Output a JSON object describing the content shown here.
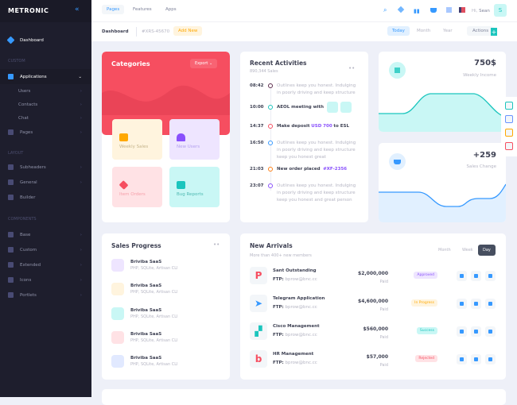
{
  "brand": "METRONIC",
  "sidebar": {
    "dashboard": "Dashboard",
    "sections": [
      "CUSTOM",
      "LAYOUT",
      "COMPONENTS"
    ],
    "items": [
      {
        "label": "Applications"
      },
      {
        "label": "Users"
      },
      {
        "label": "Contacts"
      },
      {
        "label": "Chat"
      },
      {
        "label": "Pages"
      },
      {
        "label": "Subheaders"
      },
      {
        "label": "General"
      },
      {
        "label": "Builder"
      },
      {
        "label": "Base"
      },
      {
        "label": "Custom"
      },
      {
        "label": "Extended"
      },
      {
        "label": "Icons"
      },
      {
        "label": "Portlets"
      }
    ]
  },
  "header": {
    "tabs": [
      "Pages",
      "Features",
      "Apps"
    ],
    "greeting": "Hi,",
    "user": "Sean",
    "avatar": "S"
  },
  "subheader": {
    "title": "Dashboard",
    "code": "#XRS-45670",
    "add_new": "Add New",
    "periods": [
      "Today",
      "Month",
      "Year"
    ],
    "actions": "Actions"
  },
  "categories": {
    "title": "Categories",
    "export": "Export",
    "tiles": [
      "Weekly Sales",
      "New Users",
      "Item Orders",
      "Bug Reports"
    ]
  },
  "activities": {
    "title": "Recent Activities",
    "subtitle": "890,344 Sales",
    "items": [
      {
        "time": "08:42",
        "text": "Outlines keep you honest. Indulging in poorly driving and keep structure",
        "color": "#5d2c4d"
      },
      {
        "time": "10:00",
        "text": "AEOL meeting with",
        "color": "#1bc5bd"
      },
      {
        "time": "14:37",
        "text": "Make deposit",
        "highlight": "USD 700",
        "suffix": "to ESL",
        "color": "#f64e60"
      },
      {
        "time": "16:50",
        "text": "Outlines keep you honest. Indulging in poorly driving and keep structure keep you honest great",
        "color": "#3699ff"
      },
      {
        "time": "21:03",
        "text": "New order placed",
        "highlight": "#XF-2356",
        "color": "#fd7e14"
      },
      {
        "time": "23:07",
        "text": "Outlines keep you honest. Indulging in poorly driving and keep structure keep you honest and great person",
        "color": "#8950fc"
      }
    ]
  },
  "weekly_income": {
    "value": "750$",
    "label": "Weekly Income"
  },
  "sales_change": {
    "value": "+259",
    "label": "Sales Change"
  },
  "sales_progress": {
    "title": "Sales Progress",
    "items": [
      {
        "name": "Briviba SaaS",
        "desc": "PHP, SQLite, Artisan CLI"
      },
      {
        "name": "Briviba SaaS",
        "desc": "PHP, SQLite, Artisan CLI"
      },
      {
        "name": "Briviba SaaS",
        "desc": "PHP, SQLite, Artisan CLI"
      },
      {
        "name": "Briviba SaaS",
        "desc": "PHP, SQLite, Artisan CLI"
      },
      {
        "name": "Briviba SaaS",
        "desc": "PHP, SQLite, Artisan CLI"
      }
    ]
  },
  "new_arrivals": {
    "title": "New Arrivals",
    "subtitle": "More than 400+ new members",
    "periods": [
      "Month",
      "Week",
      "Day"
    ],
    "ftp_label": "FTP:",
    "rows": [
      {
        "name": "Sant Outstanding",
        "ftp": "bprow@bnc.cc",
        "amount": "$2,000,000",
        "paid": "Paid",
        "status": "Approved"
      },
      {
        "name": "Telegram Application",
        "ftp": "bprow@bnc.cc",
        "amount": "$4,600,000",
        "paid": "Paid",
        "status": "In Progress"
      },
      {
        "name": "Cisco Management",
        "ftp": "bprow@bnc.cc",
        "amount": "$560,000",
        "paid": "Paid",
        "status": "Success"
      },
      {
        "name": "HR Management",
        "ftp": "bprow@bnc.cc",
        "amount": "$57,000",
        "paid": "Paid",
        "status": "Rejected"
      }
    ]
  }
}
